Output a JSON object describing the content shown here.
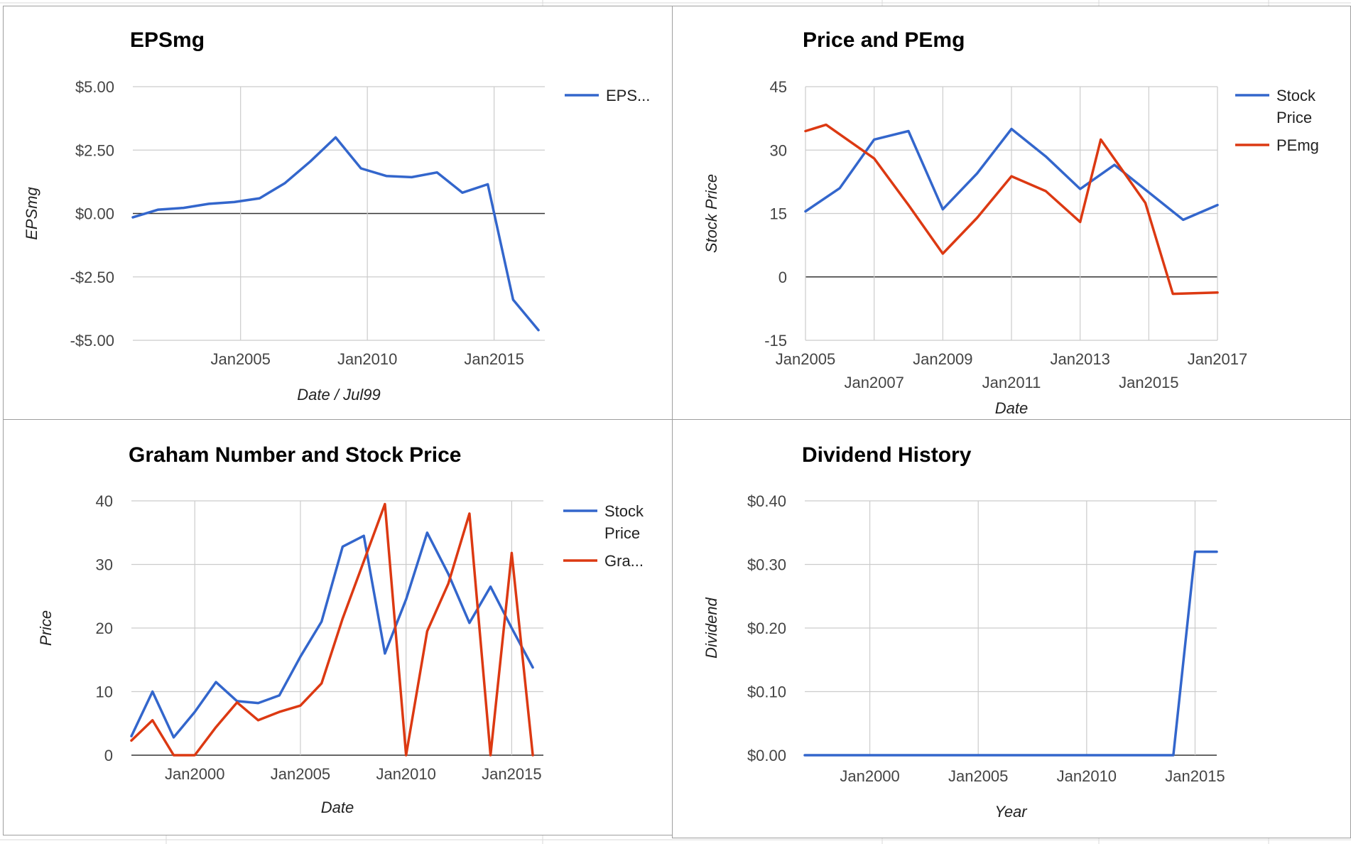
{
  "colors": {
    "blue": "#3366cc",
    "red": "#dc3912",
    "grid": "#cccccc",
    "baseline": "#333333"
  },
  "chart_data": [
    {
      "id": "eps",
      "type": "line",
      "title": "EPSmg",
      "xlabel": "Date / Jul99",
      "ylabel": "EPSmg",
      "ylim": [
        -5,
        5
      ],
      "yticks": [
        5,
        2.5,
        0,
        -2.5,
        -5
      ],
      "ytick_labels": [
        "$5.00",
        "$2.50",
        "$0.00",
        "-$2.50",
        "-$5.00"
      ],
      "xlim": [
        2000.75,
        2017
      ],
      "xticks": [
        2005,
        2010,
        2015
      ],
      "xtick_labels": [
        "Jan2005",
        "Jan2010",
        "Jan2015"
      ],
      "legend_position": "right",
      "grid": true,
      "series": [
        {
          "name": "EPS...",
          "color": "#3366cc",
          "x": [
            2000.75,
            2001.75,
            2002.75,
            2003.75,
            2004.75,
            2005.75,
            2006.75,
            2007.75,
            2008.75,
            2009.75,
            2010.75,
            2011.75,
            2012.75,
            2013.75,
            2014.75,
            2015.75,
            2016.75
          ],
          "y": [
            -0.15,
            0.15,
            0.22,
            0.38,
            0.45,
            0.6,
            1.2,
            2.05,
            3.0,
            1.78,
            1.48,
            1.43,
            1.62,
            0.82,
            1.15,
            -3.4,
            -4.6
          ]
        }
      ]
    },
    {
      "id": "price-pe",
      "type": "line",
      "title": "Price and PEmg",
      "xlabel": "Date",
      "ylabel": "Stock Price",
      "ylim": [
        -15,
        45
      ],
      "yticks": [
        45,
        30,
        15,
        0,
        -15
      ],
      "ytick_labels": [
        "45",
        "30",
        "15",
        "0",
        "-15"
      ],
      "xlim": [
        2005,
        2017
      ],
      "xticks": [
        2005,
        2007,
        2009,
        2011,
        2013,
        2015,
        2017
      ],
      "xtick_labels": [
        "Jan2005",
        "Jan2007",
        "Jan2009",
        "Jan2011",
        "Jan2013",
        "Jan2015",
        "Jan2017"
      ],
      "legend_position": "right",
      "grid": true,
      "series": [
        {
          "name": "Stock Price",
          "color": "#3366cc",
          "x": [
            2005,
            2006,
            2007,
            2008,
            2009,
            2010,
            2011,
            2012,
            2013,
            2014,
            2015,
            2016,
            2017
          ],
          "y": [
            15.5,
            21,
            32.5,
            34.5,
            16,
            24.5,
            35,
            28.5,
            20.8,
            26.5,
            20,
            13.5,
            17
          ]
        },
        {
          "name": "PEmg",
          "color": "#dc3912",
          "x": [
            2005,
            2005.6,
            2007,
            2008,
            2009,
            2010,
            2011,
            2012,
            2013,
            2013.6,
            2014.9,
            2015.7,
            2017
          ],
          "y": [
            34.5,
            36,
            28,
            17,
            5.5,
            14,
            23.8,
            20.3,
            13,
            32.5,
            17.5,
            -4,
            -3.7
          ]
        }
      ]
    },
    {
      "id": "graham",
      "type": "line",
      "title": "Graham Number and Stock Price",
      "xlabel": "Date",
      "ylabel": "Price",
      "ylim": [
        0,
        40
      ],
      "yticks": [
        40,
        30,
        20,
        10,
        0
      ],
      "ytick_labels": [
        "40",
        "30",
        "20",
        "10",
        "0"
      ],
      "xlim": [
        1997,
        2016.5
      ],
      "xticks": [
        2000,
        2005,
        2010,
        2015
      ],
      "xtick_labels": [
        "Jan2000",
        "Jan2005",
        "Jan2010",
        "Jan2015"
      ],
      "legend_position": "right",
      "grid": true,
      "series": [
        {
          "name": "Stock Price",
          "color": "#3366cc",
          "x": [
            1997,
            1998,
            1999,
            2000,
            2001,
            2002,
            2003,
            2004,
            2005,
            2006,
            2007,
            2008,
            2009,
            2010,
            2011,
            2012,
            2013,
            2014,
            2015,
            2016
          ],
          "y": [
            3,
            10,
            2.8,
            6.8,
            11.5,
            8.5,
            8.2,
            9.4,
            15.5,
            21,
            32.8,
            34.5,
            16,
            24.5,
            35,
            28.5,
            20.8,
            26.5,
            20,
            13.8
          ]
        },
        {
          "name": "Gra...",
          "color": "#dc3912",
          "x": [
            1997,
            1998,
            1999,
            2000,
            2001,
            2002,
            2003,
            2004,
            2005,
            2006,
            2007,
            2008,
            2009,
            2010,
            2011,
            2012,
            2013,
            2014,
            2015,
            2016
          ],
          "y": [
            2.3,
            5.5,
            0,
            0,
            4.4,
            8.3,
            5.5,
            6.8,
            7.8,
            11.3,
            21.5,
            30.5,
            39.5,
            0,
            19.5,
            27,
            38,
            0,
            31.8,
            0
          ]
        }
      ]
    },
    {
      "id": "dividend",
      "type": "line",
      "title": "Dividend History",
      "xlabel": "Year",
      "ylabel": "Dividend",
      "ylim": [
        0,
        0.4
      ],
      "yticks": [
        0.4,
        0.3,
        0.2,
        0.1,
        0
      ],
      "ytick_labels": [
        "$0.40",
        "$0.30",
        "$0.20",
        "$0.10",
        "$0.00"
      ],
      "xlim": [
        1997,
        2016
      ],
      "xticks": [
        2000,
        2005,
        2010,
        2015
      ],
      "xtick_labels": [
        "Jan2000",
        "Jan2005",
        "Jan2010",
        "Jan2015"
      ],
      "legend_position": "none",
      "grid": true,
      "series": [
        {
          "name": "",
          "color": "#3366cc",
          "x": [
            1997,
            1998,
            1999,
            2000,
            2001,
            2002,
            2003,
            2004,
            2005,
            2006,
            2007,
            2008,
            2009,
            2010,
            2011,
            2012,
            2013,
            2014,
            2015,
            2016
          ],
          "y": [
            0,
            0,
            0,
            0,
            0,
            0,
            0,
            0,
            0,
            0,
            0,
            0,
            0,
            0,
            0,
            0,
            0,
            0,
            0.32,
            0.32
          ]
        }
      ]
    }
  ]
}
